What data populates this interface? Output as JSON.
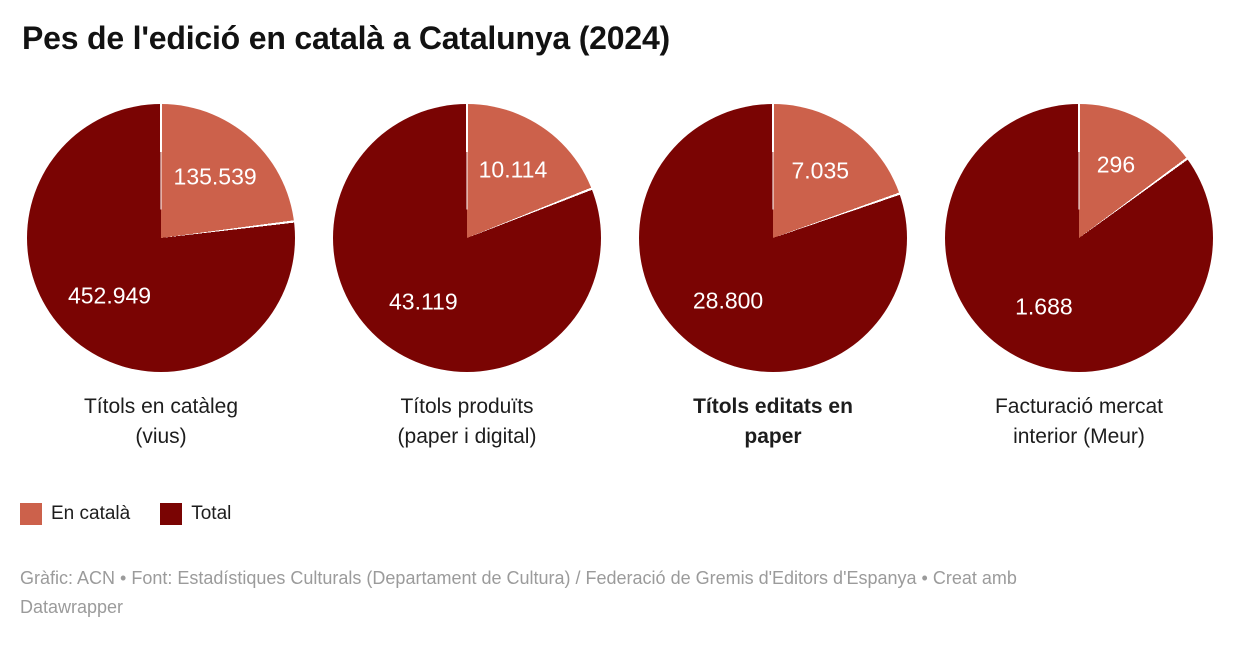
{
  "title": "Pes de l'edició en català a Catalunya (2024)",
  "colors": {
    "en_catala": "#cc614b",
    "total": "#7a0403",
    "background": "#ffffff",
    "title_text": "#121212",
    "category_text": "#1d1d1d",
    "value_label_text": "#ffffff",
    "footer_text": "#9b9b9b",
    "slice_divider": "#ffffff"
  },
  "legend": {
    "items": [
      {
        "label": "En català",
        "color": "#cc614b"
      },
      {
        "label": "Total",
        "color": "#7a0403"
      }
    ]
  },
  "chart_data": {
    "type": "pie",
    "title": "Pes de l'edició en català a Catalunya (2024)",
    "series_names": [
      "En català",
      "Total"
    ],
    "legend_position": "bottom-left",
    "label_format": "thousands separated by period",
    "categories": [
      "Títols en catàleg (vius)",
      "Títols produïts (paper i digital)",
      "Títols editats en paper",
      "Facturació mercat interior (Meur)"
    ],
    "pies": [
      {
        "category": "Títols en catàleg (vius)",
        "label_lines": [
          "Títols en catàleg",
          "(vius)"
        ],
        "bold_category": false,
        "values": {
          "en_catala": 135539,
          "total": 452949
        },
        "value_labels": [
          "135.539",
          "452.949"
        ]
      },
      {
        "category": "Títols produïts (paper i digital)",
        "label_lines": [
          "Títols produïts",
          "(paper i digital)"
        ],
        "bold_category": false,
        "values": {
          "en_catala": 10114,
          "total": 43119
        },
        "value_labels": [
          "10.114",
          "43.119"
        ]
      },
      {
        "category": "Títols editats en paper",
        "label_lines": [
          "Títols editats en",
          "paper"
        ],
        "bold_category": true,
        "values": {
          "en_catala": 7035,
          "total": 28800
        },
        "value_labels": [
          "7.035",
          "28.800"
        ]
      },
      {
        "category": "Facturació mercat interior (Meur)",
        "label_lines": [
          "Facturació mercat",
          "interior (Meur)"
        ],
        "bold_category": false,
        "values": {
          "en_catala": 296,
          "total": 1688
        },
        "value_labels": [
          "296",
          "1.688"
        ]
      }
    ]
  },
  "footer": {
    "line1": "Gràfic: ACN • Font: Estadístiques Culturals (Departament de Cultura) / Federació de Gremis d'Editors d'Espanya • Creat amb",
    "line2": "Datawrapper"
  }
}
